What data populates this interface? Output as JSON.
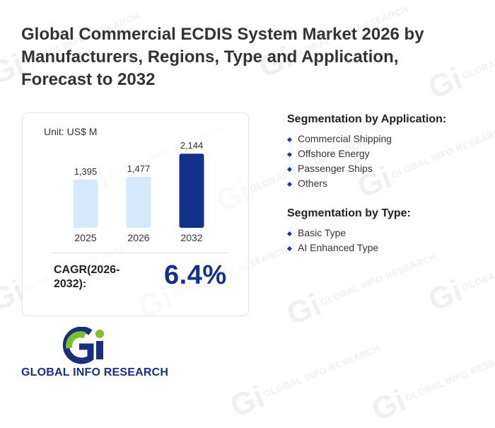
{
  "title": "Global Commercial ECDIS System Market 2026 by Manufacturers, Regions, Type and Application, Forecast to 2032",
  "unit": "Unit: US$ M",
  "chart_data": {
    "type": "bar",
    "categories": [
      "2025",
      "2026",
      "2032"
    ],
    "values": [
      1395,
      1477,
      2144
    ],
    "value_labels": [
      "1,395",
      "1,477",
      "2,144"
    ],
    "colors": [
      "#d6e8fb",
      "#d6e8fb",
      "#13308a"
    ],
    "title": "",
    "xlabel": "",
    "ylabel": "",
    "grid": false
  },
  "cagr": {
    "label": "CAGR(2026-2032):",
    "value": "6.4%"
  },
  "segmentation_application": {
    "heading": "Segmentation by Application:",
    "items": [
      "Commercial Shipping",
      "Offshore Energy",
      "Passenger Ships",
      "Others"
    ]
  },
  "segmentation_type": {
    "heading": "Segmentation by Type:",
    "items": [
      "Basic Type",
      "AI Enhanced Type"
    ]
  },
  "logo": {
    "text": "GLOBAL INFO RESEARCH",
    "colors": {
      "green": "#7fbf2a",
      "blue": "#1a2f7a"
    }
  },
  "watermark": {
    "text": "GLOBAL INFO RESEARCH"
  }
}
